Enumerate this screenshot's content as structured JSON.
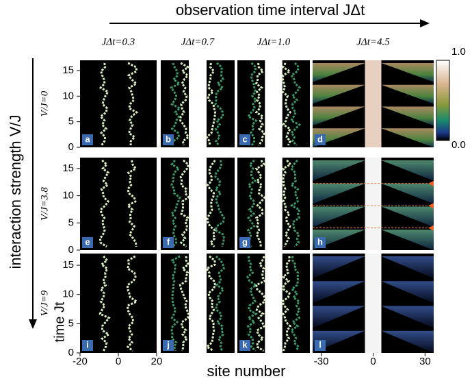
{
  "title": "observation time interval JΔt",
  "row_axis_label": "interaction strength V/J",
  "columns": [
    "JΔt=0.3",
    "JΔt=0.7",
    "JΔt=1.0",
    "JΔt=4.5"
  ],
  "rows": [
    "V/J=0",
    "V/J=3.8",
    "V/J=9"
  ],
  "panels": [
    "a",
    "b",
    "c",
    "d",
    "e",
    "f",
    "g",
    "h",
    "i",
    "j",
    "k",
    "l"
  ],
  "y_axis": {
    "label": "time Jt",
    "ylim": [
      0,
      17
    ],
    "ticks": [
      0,
      5,
      10,
      15
    ]
  },
  "x_axis": {
    "label": "site number",
    "narrow_xlim": [
      -20,
      20
    ],
    "narrow_ticks": [
      -20,
      0,
      20
    ],
    "wide_xlim": [
      -35,
      35
    ],
    "wide_ticks": [
      -30,
      0,
      30
    ]
  },
  "colorbar": {
    "ticks": [
      "1.0",
      "0.0"
    ]
  }
}
